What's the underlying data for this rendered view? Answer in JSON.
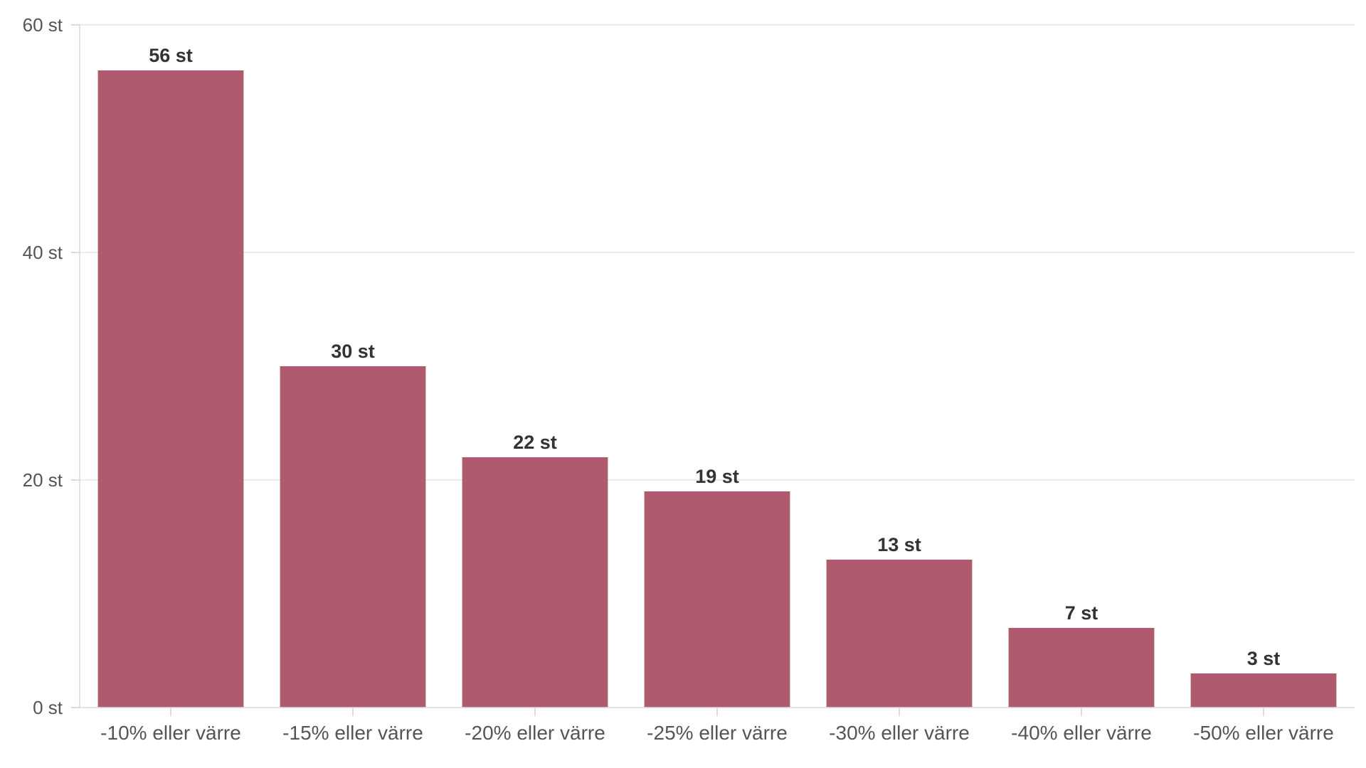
{
  "chart_data": {
    "type": "bar",
    "title": "",
    "xlabel": "",
    "ylabel": "",
    "categories": [
      "-10% eller värre",
      "-15% eller värre",
      "-20% eller värre",
      "-25% eller värre",
      "-30% eller värre",
      "-40% eller värre",
      "-50% eller värre"
    ],
    "values": [
      56,
      30,
      22,
      19,
      13,
      7,
      3
    ],
    "value_labels": [
      "56 st",
      "30 st",
      "22 st",
      "19 st",
      "13 st",
      "7 st",
      "3 st"
    ],
    "ylim": [
      0,
      60
    ],
    "y_ticks": [
      0,
      20,
      40,
      60
    ],
    "y_tick_labels": [
      "0 st",
      "20 st",
      "40 st",
      "60 st"
    ],
    "grid": true,
    "legend": "none",
    "bar_color": "#b05a70"
  }
}
